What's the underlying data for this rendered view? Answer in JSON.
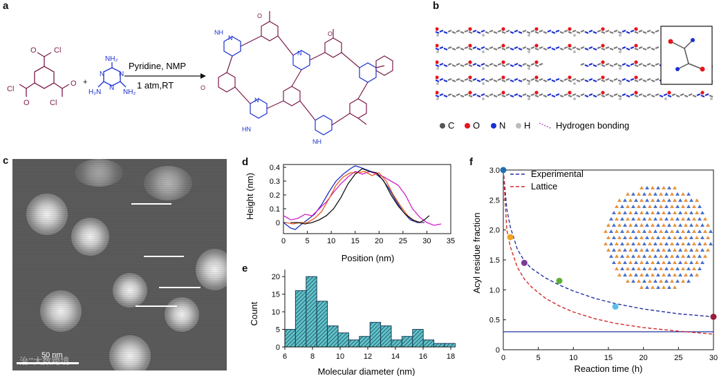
{
  "panel_labels": {
    "a": "a",
    "b": "b",
    "c": "c",
    "d": "d",
    "e": "e",
    "f": "f"
  },
  "panel_a": {
    "reagent_plus": "+",
    "condition_top": "Pyridine, NMP",
    "condition_bottom": "1 atm,RT",
    "acyl_chloride_labels": [
      "Cl",
      "Cl",
      "Cl",
      "O",
      "O",
      "O"
    ],
    "melamine_labels": [
      "NH₂",
      "H₂N",
      "NH₂",
      "N",
      "N",
      "N"
    ],
    "product_labels": [
      "NH",
      "N",
      "N",
      "N",
      "HN",
      "NH",
      "O",
      "O",
      "O"
    ]
  },
  "panel_b": {
    "legend": [
      {
        "label": "C",
        "color": "#555555"
      },
      {
        "label": "O",
        "color": "#e8141c"
      },
      {
        "label": "N",
        "color": "#1a2fd0"
      },
      {
        "label": "H",
        "color": "#bbbbbb"
      },
      {
        "label": "Hydrogen bonding",
        "color": "#b050c8"
      }
    ]
  },
  "panel_c": {
    "scale_text": "50 nm",
    "watermark": "治’”大数跨境"
  },
  "chart_data": [
    {
      "type": "line",
      "id": "d",
      "xlabel": "Position (nm)",
      "ylabel": "Height (nm)",
      "xlim": [
        0,
        35
      ],
      "ylim": [
        -0.08,
        0.42
      ],
      "xticks": [
        0,
        5,
        10,
        15,
        20,
        25,
        30,
        35
      ],
      "yticks": [
        0,
        0.1,
        0.2,
        0.3,
        0.4
      ],
      "series": [
        {
          "name": "blue",
          "color": "#1f2fbf",
          "x": [
            0,
            1.5,
            2.5,
            3.5,
            5,
            6.5,
            8,
            9.5,
            11,
            12.5,
            14,
            15,
            16,
            17.5,
            19,
            20.5,
            22,
            23.5,
            25,
            26.5,
            28,
            29.5
          ],
          "y": [
            0.0,
            -0.04,
            -0.05,
            -0.02,
            0.02,
            0.06,
            0.13,
            0.22,
            0.3,
            0.35,
            0.39,
            0.41,
            0.4,
            0.38,
            0.36,
            0.32,
            0.25,
            0.16,
            0.08,
            0.02,
            0.0,
            0.0
          ]
        },
        {
          "name": "magenta",
          "color": "#d020c8",
          "x": [
            0,
            1.5,
            3,
            4.5,
            6,
            7.5,
            9,
            10.5,
            12,
            13.5,
            15,
            16.5,
            18,
            19.5,
            21,
            22.5,
            24,
            25.5,
            27,
            28.5,
            30,
            31.5,
            33
          ],
          "y": [
            0.05,
            0.02,
            0.03,
            0.06,
            0.05,
            0.1,
            0.15,
            0.22,
            0.28,
            0.33,
            0.37,
            0.35,
            0.37,
            0.35,
            0.33,
            0.3,
            0.27,
            0.2,
            0.1,
            0.04,
            0.0,
            -0.02,
            -0.01
          ]
        },
        {
          "name": "orange",
          "color": "#e85a1a",
          "x": [
            0.5,
            2,
            3.5,
            5,
            6.5,
            8,
            9.5,
            11,
            12.5,
            14,
            15.5,
            17,
            18.5,
            20,
            21.5,
            23,
            24.5,
            26,
            27.5,
            29
          ],
          "y": [
            0.0,
            -0.01,
            0.0,
            0.0,
            0.03,
            0.08,
            0.17,
            0.27,
            0.33,
            0.36,
            0.36,
            0.37,
            0.34,
            0.36,
            0.3,
            0.2,
            0.12,
            0.05,
            0.01,
            0.0
          ]
        },
        {
          "name": "black",
          "color": "#111111",
          "x": [
            1.5,
            3,
            4.5,
            6,
            7.5,
            9,
            10.5,
            12,
            13.5,
            15,
            16.5,
            18,
            19.5,
            21,
            22.5,
            24,
            25.5,
            27,
            28.5,
            29.5,
            30.5
          ],
          "y": [
            0.0,
            0.0,
            -0.01,
            0.0,
            0.02,
            0.05,
            0.1,
            0.18,
            0.28,
            0.35,
            0.39,
            0.37,
            0.36,
            0.3,
            0.2,
            0.12,
            0.06,
            0.02,
            0.0,
            0.02,
            0.05
          ]
        }
      ]
    },
    {
      "type": "bar",
      "id": "e",
      "xlabel": "Molecular diameter (nm)",
      "ylabel": "Count",
      "xlim": [
        6,
        18
      ],
      "ylim": [
        0,
        22
      ],
      "xticks": [
        6,
        8,
        10,
        12,
        14,
        16,
        18
      ],
      "yticks": [
        0,
        5,
        10,
        15,
        20
      ],
      "bin_width": 0.77,
      "bin_starts": [
        6.0,
        6.77,
        7.54,
        8.31,
        9.08,
        9.85,
        10.62,
        11.39,
        12.16,
        12.93,
        13.7,
        14.47,
        15.24,
        16.01,
        16.78,
        17.55
      ],
      "values": [
        5,
        16,
        20,
        13,
        6,
        4,
        2,
        3,
        7,
        6,
        2,
        3,
        5,
        2,
        1,
        1
      ]
    },
    {
      "type": "line",
      "id": "f",
      "xlabel": "Reaction time (h)",
      "ylabel": "Acyl residue fraction",
      "xlim": [
        0,
        30
      ],
      "ylim": [
        0,
        3.0
      ],
      "xticks": [
        0,
        5,
        10,
        15,
        20,
        25,
        30
      ],
      "yticks": [
        0,
        0.5,
        1.0,
        1.5,
        2.0,
        2.5,
        3.0
      ],
      "legend": [
        {
          "label": "Experimental",
          "color": "#1f2f9f",
          "style": "dashed"
        },
        {
          "label": "Lattice",
          "color": "#d02828",
          "style": "dashed"
        }
      ],
      "points": [
        {
          "x": 0,
          "y": 3.0,
          "color": "#1f6fb4"
        },
        {
          "x": 1,
          "y": 1.88,
          "color": "#f0a424"
        },
        {
          "x": 3,
          "y": 1.45,
          "color": "#7a3d96"
        },
        {
          "x": 8,
          "y": 1.15,
          "color": "#5cb033"
        },
        {
          "x": 16,
          "y": 0.72,
          "color": "#5bc0e8"
        },
        {
          "x": 30,
          "y": 0.55,
          "color": "#9a1d3e"
        }
      ],
      "baseline": 0.3,
      "experimental_curve": {
        "x": [
          0,
          0.5,
          1,
          2,
          3,
          4,
          6,
          8,
          10,
          13,
          16,
          20,
          25,
          30
        ],
        "y": [
          3.0,
          2.35,
          2.05,
          1.68,
          1.48,
          1.36,
          1.2,
          1.08,
          0.98,
          0.86,
          0.77,
          0.68,
          0.6,
          0.55
        ]
      },
      "lattice_curve": {
        "x": [
          0,
          0.5,
          1,
          2,
          3,
          4,
          6,
          8,
          10,
          13,
          16,
          20,
          25,
          30
        ],
        "y": [
          3.0,
          2.0,
          1.72,
          1.38,
          1.18,
          1.05,
          0.86,
          0.73,
          0.63,
          0.52,
          0.44,
          0.37,
          0.31,
          0.26
        ]
      }
    }
  ]
}
